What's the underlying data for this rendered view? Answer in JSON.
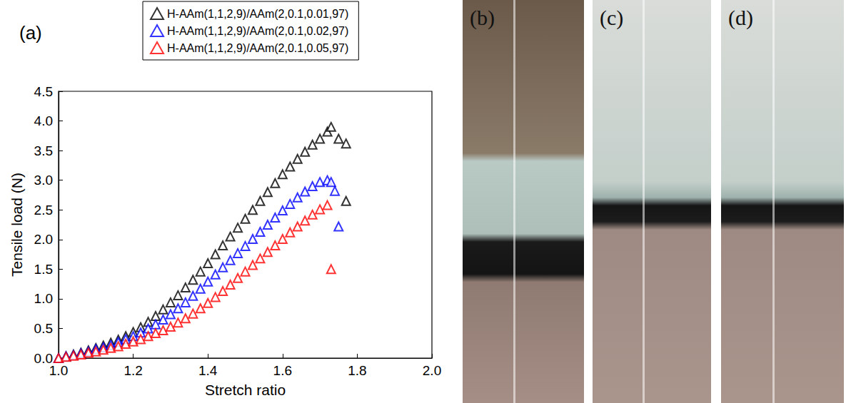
{
  "panel_label": "(a)",
  "chart_data": {
    "type": "scatter",
    "x_label": "Stretch ratio",
    "y_label": "Tensile load (N)",
    "xlim": [
      1.0,
      2.0
    ],
    "xticks": [
      {
        "value": 1.0,
        "label": "1.0"
      },
      1.2,
      1.4,
      1.6,
      1.8,
      {
        "value": 2.0,
        "label": "2.0"
      }
    ],
    "ylim": [
      0.0,
      4.5
    ],
    "yticks": [
      {
        "value": 0.0,
        "label": "0.0"
      },
      0.5,
      {
        "value": 1.0,
        "label": "1.0"
      },
      1.5,
      {
        "value": 2.0,
        "label": "2.0"
      },
      2.5,
      {
        "value": 3.0,
        "label": "3.0"
      },
      3.5,
      {
        "value": 4.0,
        "label": "4.0"
      },
      4.5
    ],
    "grid": false,
    "legend": "top",
    "marker": "hollow triangle",
    "series": [
      {
        "name": "H-AAm(1,1,2,9)/AAm(2,0.1,0.01,97)",
        "color": "#000000",
        "x": [
          1.0,
          1.02,
          1.04,
          1.06,
          1.08,
          1.1,
          1.12,
          1.14,
          1.16,
          1.18,
          1.2,
          1.22,
          1.24,
          1.26,
          1.28,
          1.3,
          1.32,
          1.34,
          1.36,
          1.38,
          1.4,
          1.42,
          1.44,
          1.46,
          1.48,
          1.5,
          1.52,
          1.54,
          1.56,
          1.58,
          1.6,
          1.62,
          1.64,
          1.66,
          1.68,
          1.7,
          1.72,
          1.73,
          1.75,
          1.77,
          1.77
        ],
        "values": [
          0.0,
          0.03,
          0.06,
          0.09,
          0.13,
          0.17,
          0.21,
          0.26,
          0.31,
          0.37,
          0.44,
          0.52,
          0.61,
          0.71,
          0.82,
          0.94,
          1.06,
          1.19,
          1.32,
          1.46,
          1.6,
          1.75,
          1.9,
          2.05,
          2.2,
          2.35,
          2.5,
          2.65,
          2.8,
          2.95,
          3.1,
          3.23,
          3.36,
          3.48,
          3.6,
          3.7,
          3.82,
          3.9,
          3.7,
          3.62,
          2.65
        ]
      },
      {
        "name": "H-AAm(1,1,2,9)/AAm(2,0.1,0.02,97)",
        "color": "#0000ff",
        "x": [
          1.0,
          1.02,
          1.04,
          1.06,
          1.08,
          1.1,
          1.12,
          1.14,
          1.16,
          1.18,
          1.2,
          1.22,
          1.24,
          1.26,
          1.28,
          1.3,
          1.32,
          1.34,
          1.36,
          1.38,
          1.4,
          1.42,
          1.44,
          1.46,
          1.48,
          1.5,
          1.52,
          1.54,
          1.56,
          1.58,
          1.6,
          1.62,
          1.64,
          1.66,
          1.68,
          1.7,
          1.72,
          1.73,
          1.74,
          1.75
        ],
        "values": [
          0.0,
          0.03,
          0.05,
          0.08,
          0.11,
          0.15,
          0.18,
          0.22,
          0.27,
          0.32,
          0.37,
          0.43,
          0.5,
          0.57,
          0.65,
          0.74,
          0.84,
          0.94,
          1.05,
          1.17,
          1.29,
          1.41,
          1.53,
          1.65,
          1.77,
          1.89,
          2.01,
          2.13,
          2.25,
          2.37,
          2.49,
          2.6,
          2.71,
          2.81,
          2.9,
          2.97,
          3.0,
          2.97,
          2.82,
          2.22
        ]
      },
      {
        "name": "H-AAm(1,1,2,9)/AAm(2,0.1,0.05,97)",
        "color": "#ff0000",
        "x": [
          1.0,
          1.02,
          1.04,
          1.06,
          1.08,
          1.1,
          1.12,
          1.14,
          1.16,
          1.18,
          1.2,
          1.22,
          1.24,
          1.26,
          1.28,
          1.3,
          1.32,
          1.34,
          1.36,
          1.38,
          1.4,
          1.42,
          1.44,
          1.46,
          1.48,
          1.5,
          1.52,
          1.54,
          1.56,
          1.58,
          1.6,
          1.62,
          1.64,
          1.66,
          1.68,
          1.7,
          1.72,
          1.73
        ],
        "values": [
          0.0,
          0.02,
          0.04,
          0.06,
          0.09,
          0.11,
          0.14,
          0.17,
          0.2,
          0.24,
          0.28,
          0.32,
          0.37,
          0.42,
          0.47,
          0.53,
          0.6,
          0.67,
          0.75,
          0.84,
          0.93,
          1.03,
          1.13,
          1.24,
          1.35,
          1.46,
          1.57,
          1.68,
          1.79,
          1.9,
          2.01,
          2.12,
          2.22,
          2.32,
          2.42,
          2.51,
          2.58,
          1.5
        ]
      }
    ]
  },
  "photos": [
    {
      "label": "(b)"
    },
    {
      "label": "(c)"
    },
    {
      "label": "(d)"
    }
  ]
}
